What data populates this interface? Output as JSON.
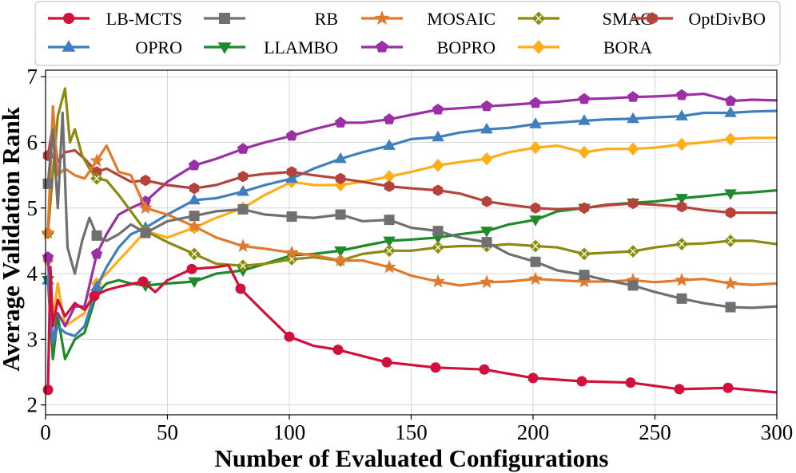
{
  "chart_data": {
    "type": "line",
    "title": "",
    "xlabel": "Number of Evaluated Configurations",
    "ylabel": "Average Validation Rank",
    "xlim": [
      0,
      300
    ],
    "ylim": [
      1.85,
      7.1
    ],
    "xticks": [
      0,
      50,
      100,
      150,
      200,
      250,
      300
    ],
    "yticks": [
      2,
      3,
      4,
      5,
      6,
      7
    ],
    "grid": true,
    "legend_position": "top",
    "series": [
      {
        "name": "LB-MCTS",
        "color": "#d1103c",
        "marker": "circle",
        "marker_x": [
          1,
          20,
          40,
          60,
          80,
          100,
          120,
          140,
          160,
          180,
          200,
          220,
          240,
          260,
          280
        ],
        "x": [
          1,
          2,
          3,
          5,
          8,
          12,
          16,
          20,
          25,
          30,
          40,
          45,
          50,
          60,
          70,
          75,
          80,
          90,
          100,
          110,
          120,
          140,
          160,
          180,
          200,
          220,
          240,
          260,
          280,
          300
        ],
        "y": [
          2.23,
          4.1,
          3.2,
          3.6,
          3.35,
          3.55,
          3.45,
          3.66,
          3.75,
          3.8,
          3.88,
          3.72,
          3.9,
          4.07,
          4.1,
          4.13,
          3.77,
          3.4,
          3.04,
          2.9,
          2.84,
          2.65,
          2.57,
          2.54,
          2.41,
          2.36,
          2.34,
          2.24,
          2.26,
          2.19
        ]
      },
      {
        "name": "RB",
        "color": "#707070",
        "marker": "square",
        "marker_x": [
          1,
          21,
          41,
          61,
          81,
          101,
          121,
          141,
          161,
          181,
          201,
          221,
          241,
          261,
          281
        ],
        "x": [
          1,
          3,
          5,
          7,
          9,
          12,
          15,
          18,
          21,
          25,
          30,
          35,
          41,
          50,
          61,
          70,
          81,
          90,
          101,
          110,
          121,
          130,
          141,
          150,
          161,
          170,
          181,
          190,
          201,
          210,
          221,
          230,
          241,
          250,
          261,
          270,
          281,
          290,
          300
        ],
        "y": [
          5.37,
          6.2,
          5.0,
          6.45,
          4.4,
          4.0,
          4.5,
          4.85,
          4.58,
          4.5,
          4.6,
          4.75,
          4.62,
          4.8,
          4.88,
          4.95,
          4.98,
          4.9,
          4.87,
          4.85,
          4.9,
          4.8,
          4.82,
          4.7,
          4.65,
          4.55,
          4.48,
          4.3,
          4.18,
          4.05,
          3.98,
          3.9,
          3.82,
          3.72,
          3.62,
          3.55,
          3.49,
          3.48,
          3.5
        ]
      },
      {
        "name": "MOSAIC",
        "color": "#e07a2e",
        "marker": "star",
        "marker_x": [
          1,
          21,
          41,
          61,
          81,
          101,
          121,
          141,
          161,
          181,
          201,
          221,
          241,
          261,
          281
        ],
        "x": [
          1,
          3,
          5,
          8,
          12,
          16,
          21,
          25,
          30,
          35,
          41,
          50,
          61,
          70,
          81,
          90,
          101,
          110,
          121,
          130,
          141,
          150,
          161,
          170,
          181,
          190,
          201,
          210,
          221,
          230,
          241,
          250,
          261,
          270,
          281,
          290,
          300
        ],
        "y": [
          4.62,
          6.55,
          5.5,
          5.6,
          5.5,
          5.45,
          5.72,
          5.95,
          5.55,
          5.5,
          5.0,
          4.9,
          4.72,
          4.55,
          4.42,
          4.38,
          4.32,
          4.28,
          4.2,
          4.2,
          4.1,
          3.97,
          3.88,
          3.82,
          3.87,
          3.88,
          3.92,
          3.9,
          3.88,
          3.88,
          3.9,
          3.87,
          3.9,
          3.92,
          3.85,
          3.83,
          3.85
        ]
      },
      {
        "name": "SMAC",
        "color": "#8b8b10",
        "marker": "diamond-x",
        "marker_x": [
          1,
          21,
          41,
          61,
          81,
          101,
          121,
          141,
          161,
          181,
          201,
          221,
          241,
          261,
          281
        ],
        "x": [
          1,
          3,
          5,
          8,
          10,
          12,
          15,
          18,
          21,
          25,
          30,
          35,
          41,
          50,
          61,
          70,
          81,
          90,
          101,
          110,
          121,
          130,
          141,
          150,
          161,
          170,
          181,
          190,
          201,
          210,
          221,
          230,
          241,
          250,
          261,
          270,
          281,
          290,
          300
        ],
        "y": [
          4.62,
          5.55,
          6.4,
          6.82,
          6.0,
          6.2,
          5.8,
          5.6,
          5.45,
          5.42,
          5.2,
          4.95,
          4.65,
          4.48,
          4.3,
          4.15,
          4.12,
          4.15,
          4.22,
          4.25,
          4.2,
          4.3,
          4.35,
          4.35,
          4.4,
          4.42,
          4.42,
          4.45,
          4.42,
          4.4,
          4.3,
          4.32,
          4.34,
          4.4,
          4.45,
          4.46,
          4.5,
          4.5,
          4.45
        ]
      },
      {
        "name": "OptDivBO",
        "color": "#b5433c",
        "marker": "hexagon",
        "marker_x": [
          1,
          21,
          41,
          61,
          81,
          101,
          121,
          141,
          161,
          181,
          201,
          221,
          241,
          261,
          281
        ],
        "x": [
          1,
          3,
          5,
          8,
          12,
          16,
          21,
          25,
          30,
          35,
          41,
          50,
          61,
          70,
          81,
          90,
          101,
          110,
          121,
          130,
          141,
          150,
          161,
          170,
          181,
          190,
          201,
          210,
          221,
          230,
          241,
          250,
          261,
          270,
          281,
          290,
          300
        ],
        "y": [
          5.8,
          6.25,
          5.7,
          5.85,
          5.88,
          5.75,
          5.55,
          5.6,
          5.5,
          5.4,
          5.42,
          5.35,
          5.3,
          5.35,
          5.48,
          5.52,
          5.55,
          5.5,
          5.45,
          5.4,
          5.33,
          5.3,
          5.27,
          5.22,
          5.1,
          5.05,
          5.0,
          4.98,
          5.0,
          5.04,
          5.07,
          5.05,
          5.02,
          4.97,
          4.93,
          4.93,
          4.93
        ]
      },
      {
        "name": "OPRO",
        "color": "#3f7fbf",
        "marker": "triangle-up",
        "marker_x": [
          1,
          21,
          41,
          61,
          81,
          101,
          121,
          141,
          161,
          181,
          201,
          221,
          241,
          261,
          281
        ],
        "x": [
          1,
          3,
          5,
          8,
          12,
          16,
          21,
          25,
          30,
          35,
          41,
          50,
          61,
          70,
          81,
          90,
          101,
          110,
          121,
          130,
          141,
          150,
          161,
          170,
          181,
          190,
          201,
          210,
          221,
          230,
          241,
          250,
          261,
          270,
          281,
          290,
          300
        ],
        "y": [
          3.9,
          2.95,
          3.2,
          3.1,
          3.05,
          3.2,
          3.8,
          4.1,
          4.4,
          4.6,
          4.7,
          4.9,
          5.12,
          5.15,
          5.25,
          5.35,
          5.45,
          5.6,
          5.75,
          5.85,
          5.95,
          6.05,
          6.08,
          6.15,
          6.2,
          6.22,
          6.28,
          6.3,
          6.33,
          6.35,
          6.36,
          6.38,
          6.4,
          6.45,
          6.45,
          6.47,
          6.48
        ]
      },
      {
        "name": "LLAMBO",
        "color": "#1e8a2a",
        "marker": "triangle-down",
        "marker_x": [
          1,
          21,
          41,
          61,
          81,
          101,
          121,
          141,
          161,
          181,
          201,
          221,
          241,
          261,
          281
        ],
        "x": [
          1,
          3,
          5,
          8,
          12,
          16,
          21,
          25,
          30,
          35,
          41,
          50,
          61,
          70,
          81,
          90,
          101,
          110,
          121,
          130,
          141,
          150,
          161,
          170,
          181,
          190,
          201,
          210,
          221,
          230,
          241,
          250,
          261,
          270,
          281,
          290,
          300
        ],
        "y": [
          3.9,
          2.7,
          3.35,
          2.7,
          3.0,
          3.1,
          3.7,
          3.85,
          3.9,
          3.85,
          3.82,
          3.85,
          3.88,
          4.0,
          4.05,
          4.15,
          4.28,
          4.3,
          4.35,
          4.42,
          4.5,
          4.52,
          4.55,
          4.6,
          4.65,
          4.75,
          4.82,
          4.95,
          5.0,
          5.05,
          5.08,
          5.1,
          5.15,
          5.18,
          5.22,
          5.24,
          5.27
        ]
      },
      {
        "name": "BOPRO",
        "color": "#9b2fa6",
        "marker": "pentagon",
        "marker_x": [
          1,
          21,
          41,
          61,
          81,
          101,
          121,
          141,
          161,
          181,
          201,
          221,
          241,
          261,
          281
        ],
        "x": [
          1,
          3,
          5,
          8,
          12,
          16,
          21,
          25,
          30,
          35,
          41,
          50,
          61,
          70,
          81,
          90,
          101,
          110,
          121,
          130,
          141,
          150,
          161,
          170,
          181,
          190,
          201,
          210,
          221,
          230,
          241,
          250,
          261,
          270,
          281,
          290,
          300
        ],
        "y": [
          4.25,
          2.9,
          3.4,
          3.2,
          3.5,
          3.5,
          4.3,
          4.6,
          4.9,
          5.0,
          5.1,
          5.4,
          5.65,
          5.75,
          5.9,
          6.0,
          6.1,
          6.2,
          6.3,
          6.3,
          6.35,
          6.42,
          6.5,
          6.52,
          6.55,
          6.57,
          6.6,
          6.62,
          6.66,
          6.67,
          6.69,
          6.7,
          6.72,
          6.74,
          6.63,
          6.65,
          6.64
        ]
      },
      {
        "name": "BORA",
        "color": "#ffae1a",
        "marker": "diamond",
        "marker_x": [
          1,
          21,
          41,
          61,
          81,
          101,
          121,
          141,
          161,
          181,
          201,
          221,
          241,
          261,
          281
        ],
        "x": [
          1,
          3,
          5,
          8,
          12,
          16,
          21,
          25,
          30,
          35,
          41,
          50,
          61,
          70,
          81,
          90,
          101,
          110,
          121,
          130,
          141,
          150,
          161,
          170,
          181,
          190,
          201,
          210,
          221,
          230,
          241,
          250,
          261,
          270,
          281,
          290,
          300
        ],
        "y": [
          4.2,
          3.3,
          3.85,
          3.2,
          3.3,
          3.4,
          3.85,
          4.0,
          4.2,
          4.4,
          4.65,
          4.55,
          4.7,
          4.85,
          5.0,
          5.2,
          5.4,
          5.35,
          5.35,
          5.4,
          5.48,
          5.55,
          5.65,
          5.7,
          5.75,
          5.85,
          5.92,
          5.95,
          5.85,
          5.9,
          5.9,
          5.92,
          5.97,
          6.0,
          6.05,
          6.07,
          6.07
        ]
      }
    ]
  }
}
